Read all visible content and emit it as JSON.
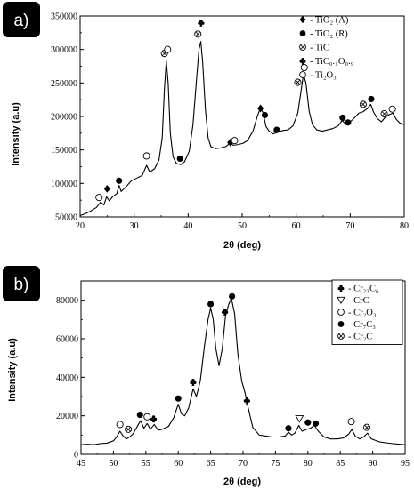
{
  "chart_data": [
    {
      "type": "line",
      "panel_label": "a)",
      "xlabel": "2θ (deg)",
      "ylabel": "Intensity (a.u)",
      "xlim": [
        20,
        80
      ],
      "ylim": [
        50000,
        350000
      ],
      "x_ticks": [
        20,
        30,
        40,
        50,
        60,
        70,
        80
      ],
      "y_ticks": [
        50000,
        100000,
        150000,
        200000,
        250000,
        300000,
        350000
      ],
      "x_tick_labels": [
        "20",
        "30",
        "40",
        "50",
        "60",
        "70",
        "80"
      ],
      "y_tick_labels": [
        "50000",
        "100000",
        "150000",
        "200000",
        "250000",
        "300000",
        "350000"
      ],
      "grid": false,
      "legend_placement": "top-right",
      "legend": [
        {
          "symbol": "diamond",
          "label": "- TiO₂ (A)"
        },
        {
          "symbol": "dot",
          "label": "- TiO₂ (R)"
        },
        {
          "symbol": "circle-x",
          "label": "- TiC"
        },
        {
          "symbol": "club",
          "label": "- TiC₀.₁O₀.₉"
        },
        {
          "symbol": "circle",
          "label": "- Ti₂O₃"
        }
      ],
      "series": [
        {
          "points": [
            [
              20,
              52000
            ],
            [
              21,
              55000
            ],
            [
              22,
              59000
            ],
            [
              23,
              64000
            ],
            [
              23.8,
              72000
            ],
            [
              24.4,
              68000
            ],
            [
              24.9,
              80000
            ],
            [
              25.4,
              74000
            ],
            [
              26,
              80000
            ],
            [
              26.8,
              85000
            ],
            [
              27.2,
              97000
            ],
            [
              27.6,
              88000
            ],
            [
              28.5,
              95000
            ],
            [
              29.5,
              104000
            ],
            [
              30.5,
              108000
            ],
            [
              31.5,
              112000
            ],
            [
              32.3,
              127000
            ],
            [
              32.9,
              117000
            ],
            [
              33.8,
              122000
            ],
            [
              34.6,
              135000
            ],
            [
              35.2,
              168000
            ],
            [
              35.6,
              240000
            ],
            [
              35.95,
              283000
            ],
            [
              36.3,
              250000
            ],
            [
              36.7,
              175000
            ],
            [
              37.2,
              140000
            ],
            [
              37.8,
              130000
            ],
            [
              38.6,
              128000
            ],
            [
              39.3,
              132000
            ],
            [
              40.2,
              148000
            ],
            [
              40.9,
              188000
            ],
            [
              41.5,
              250000
            ],
            [
              42,
              300000
            ],
            [
              42.35,
              312000
            ],
            [
              42.7,
              280000
            ],
            [
              43.2,
              210000
            ],
            [
              43.7,
              168000
            ],
            [
              44.2,
              155000
            ],
            [
              45,
              152000
            ],
            [
              46,
              153000
            ],
            [
              47,
              155000
            ],
            [
              47.7,
              160000
            ],
            [
              48.4,
              157000
            ],
            [
              49.3,
              158000
            ],
            [
              50.2,
              160000
            ],
            [
              51,
              164000
            ],
            [
              52,
              178000
            ],
            [
              52.8,
              200000
            ],
            [
              53.4,
              213000
            ],
            [
              53.9,
              205000
            ],
            [
              54.4,
              185000
            ],
            [
              55,
              178000
            ],
            [
              55.7,
              174000
            ],
            [
              56.5,
              176000
            ],
            [
              57.5,
              179000
            ],
            [
              58.5,
              180000
            ],
            [
              59.4,
              186000
            ],
            [
              60.3,
              205000
            ],
            [
              60.9,
              238000
            ],
            [
              61.35,
              263000
            ],
            [
              61.8,
              250000
            ],
            [
              62.4,
              208000
            ],
            [
              63,
              188000
            ],
            [
              63.8,
              180000
            ],
            [
              64.8,
              178000
            ],
            [
              65.8,
              180000
            ],
            [
              66.8,
              182000
            ],
            [
              67.8,
              186000
            ],
            [
              68.5,
              194000
            ],
            [
              69.2,
              188000
            ],
            [
              70,
              192000
            ],
            [
              70.8,
              198000
            ],
            [
              71.6,
              205000
            ],
            [
              72.4,
              207000
            ],
            [
              73.2,
              212000
            ],
            [
              73.8,
              218000
            ],
            [
              74.3,
              207000
            ],
            [
              75,
              197000
            ],
            [
              75.8,
              192000
            ],
            [
              76.5,
              199000
            ],
            [
              77.3,
              203000
            ],
            [
              77.9,
              205000
            ],
            [
              78.5,
              196000
            ],
            [
              79.2,
              190000
            ],
            [
              80,
              188000
            ]
          ]
        }
      ],
      "annotations": [
        {
          "symbol": "circle",
          "x": 23.5,
          "y": 79000
        },
        {
          "symbol": "diamond",
          "x": 25.0,
          "y": 92000
        },
        {
          "symbol": "dot",
          "x": 27.2,
          "y": 104000
        },
        {
          "symbol": "circle",
          "x": 32.3,
          "y": 141000
        },
        {
          "symbol": "circle-x",
          "x": 35.6,
          "y": 294000
        },
        {
          "symbol": "circle",
          "x": 36.2,
          "y": 300000
        },
        {
          "symbol": "dot",
          "x": 38.5,
          "y": 137000
        },
        {
          "symbol": "circle-x",
          "x": 41.8,
          "y": 323000
        },
        {
          "symbol": "club",
          "x": 42.4,
          "y": 340000
        },
        {
          "symbol": "diamond",
          "x": 47.8,
          "y": 161000
        },
        {
          "symbol": "circle",
          "x": 48.6,
          "y": 164000
        },
        {
          "symbol": "diamond",
          "x": 53.4,
          "y": 212000
        },
        {
          "symbol": "dot",
          "x": 54.2,
          "y": 202000
        },
        {
          "symbol": "dot",
          "x": 56.4,
          "y": 180000
        },
        {
          "symbol": "circle-x",
          "x": 60.3,
          "y": 251000
        },
        {
          "symbol": "circle",
          "x": 61.5,
          "y": 273000
        },
        {
          "symbol": "dot",
          "x": 68.6,
          "y": 198000
        },
        {
          "symbol": "dot",
          "x": 69.6,
          "y": 191000
        },
        {
          "symbol": "circle-x",
          "x": 72.4,
          "y": 218000
        },
        {
          "symbol": "dot",
          "x": 73.9,
          "y": 226000
        },
        {
          "symbol": "circle-x",
          "x": 76.3,
          "y": 204000
        },
        {
          "symbol": "circle",
          "x": 77.8,
          "y": 211000
        }
      ]
    },
    {
      "type": "line",
      "panel_label": "b)",
      "xlabel": "2θ (deg)",
      "ylabel": "Intensity (a.u)",
      "xlim": [
        45,
        95
      ],
      "ylim": [
        0,
        90000
      ],
      "x_ticks": [
        45,
        50,
        55,
        60,
        65,
        70,
        75,
        80,
        85,
        90,
        95
      ],
      "y_ticks": [
        0,
        20000,
        40000,
        60000,
        80000
      ],
      "x_tick_labels": [
        "45",
        "50",
        "55",
        "60",
        "65",
        "70",
        "75",
        "80",
        "85",
        "90",
        "95"
      ],
      "y_tick_labels": [
        "0",
        "20000",
        "40000",
        "60000",
        "80000"
      ],
      "grid": false,
      "legend_placement": "top-right",
      "legend": [
        {
          "symbol": "club",
          "label": "- Cr₂₃C₆"
        },
        {
          "symbol": "triangle-down",
          "label": "- CrC"
        },
        {
          "symbol": "circle",
          "label": "- Cr₂O₃"
        },
        {
          "symbol": "dot",
          "label": "- Cr₇C₃"
        },
        {
          "symbol": "circle-x",
          "label": "- Cr₂C"
        }
      ],
      "series": [
        {
          "points": [
            [
              45,
              5000
            ],
            [
              46,
              5200
            ],
            [
              47,
              5000
            ],
            [
              48,
              5600
            ],
            [
              49,
              5800
            ],
            [
              50,
              7000
            ],
            [
              50.5,
              9000
            ],
            [
              51,
              12000
            ],
            [
              51.5,
              9500
            ],
            [
              52,
              8000
            ],
            [
              52.5,
              9000
            ],
            [
              53,
              10500
            ],
            [
              53.6,
              14000
            ],
            [
              54.2,
              17500
            ],
            [
              54.7,
              13500
            ],
            [
              55.2,
              16000
            ],
            [
              55.7,
              13000
            ],
            [
              56.3,
              15500
            ],
            [
              56.9,
              12500
            ],
            [
              57.5,
              13000
            ],
            [
              58.5,
              14500
            ],
            [
              59.3,
              19000
            ],
            [
              60,
              26000
            ],
            [
              60.5,
              21000
            ],
            [
              61,
              20000
            ],
            [
              61.6,
              24000
            ],
            [
              62.3,
              34000
            ],
            [
              62.8,
              30000
            ],
            [
              63.4,
              38000
            ],
            [
              64,
              55000
            ],
            [
              64.6,
              70000
            ],
            [
              65,
              76000
            ],
            [
              65.4,
              70000
            ],
            [
              65.8,
              55000
            ],
            [
              66.3,
              46000
            ],
            [
              66.8,
              55000
            ],
            [
              67.3,
              72000
            ],
            [
              67.8,
              78000
            ],
            [
              68.2,
              81000
            ],
            [
              68.7,
              73000
            ],
            [
              69.2,
              52000
            ],
            [
              69.8,
              38000
            ],
            [
              70.3,
              32000
            ],
            [
              70.8,
              24000
            ],
            [
              71.5,
              14000
            ],
            [
              72.5,
              10000
            ],
            [
              73.5,
              9500
            ],
            [
              74.5,
              9000
            ],
            [
              75.5,
              9000
            ],
            [
              76.5,
              9500
            ],
            [
              77,
              11500
            ],
            [
              77.5,
              10000
            ],
            [
              78,
              11000
            ],
            [
              78.6,
              15000
            ],
            [
              79.1,
              12000
            ],
            [
              79.8,
              13000
            ],
            [
              80.4,
              13500
            ],
            [
              81,
              15000
            ],
            [
              81.6,
              12000
            ],
            [
              82.5,
              9000
            ],
            [
              83.5,
              8000
            ],
            [
              84.5,
              8000
            ],
            [
              85.5,
              8500
            ],
            [
              86.3,
              10500
            ],
            [
              86.8,
              13000
            ],
            [
              87.3,
              9500
            ],
            [
              88,
              8000
            ],
            [
              88.6,
              9000
            ],
            [
              89.2,
              11000
            ],
            [
              89.8,
              8000
            ],
            [
              91,
              6500
            ],
            [
              92,
              6000
            ],
            [
              93,
              5600
            ],
            [
              94,
              5300
            ],
            [
              95,
              5000
            ]
          ]
        }
      ],
      "annotations": [
        {
          "symbol": "circle",
          "x": 51.0,
          "y": 15500
        },
        {
          "symbol": "circle-x",
          "x": 52.3,
          "y": 13000
        },
        {
          "symbol": "dot",
          "x": 54.1,
          "y": 20500
        },
        {
          "symbol": "circle",
          "x": 55.2,
          "y": 19500
        },
        {
          "symbol": "club",
          "x": 56.2,
          "y": 18500
        },
        {
          "symbol": "dot",
          "x": 60.0,
          "y": 29000
        },
        {
          "symbol": "club",
          "x": 62.3,
          "y": 37500
        },
        {
          "symbol": "dot",
          "x": 65.0,
          "y": 78000
        },
        {
          "symbol": "club",
          "x": 67.2,
          "y": 74000
        },
        {
          "symbol": "dot",
          "x": 68.3,
          "y": 82000
        },
        {
          "symbol": "club",
          "x": 70.6,
          "y": 28000
        },
        {
          "symbol": "dot",
          "x": 77.0,
          "y": 13500
        },
        {
          "symbol": "triangle-down",
          "x": 78.7,
          "y": 18500
        },
        {
          "symbol": "dot",
          "x": 80.0,
          "y": 16500
        },
        {
          "symbol": "dot",
          "x": 81.2,
          "y": 16000
        },
        {
          "symbol": "circle",
          "x": 86.7,
          "y": 17000
        },
        {
          "symbol": "circle-x",
          "x": 89.1,
          "y": 14000
        }
      ]
    }
  ]
}
